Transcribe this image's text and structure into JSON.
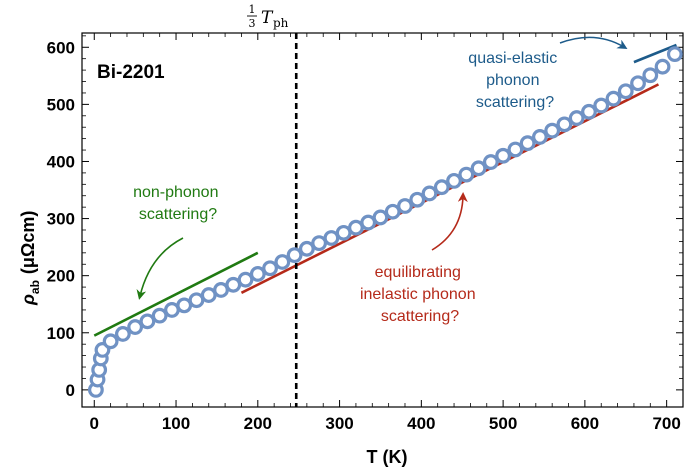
{
  "colors": {
    "marker_edge": "#7092c4",
    "green": "#207a12",
    "red": "#b52a1a",
    "blue": "#1d5b8a"
  },
  "chart_data": {
    "type": "scatter",
    "title": "",
    "xlabel": "T  (K)",
    "ylabel_main": "ρ",
    "ylabel_sub": "ab",
    "ylabel_unit": "(μΩcm)",
    "xlim": [
      -15,
      720
    ],
    "ylim": [
      -30,
      625
    ],
    "xticks": [
      0,
      100,
      200,
      300,
      400,
      500,
      600,
      700
    ],
    "yticks": [
      0,
      100,
      200,
      300,
      400,
      500,
      600
    ],
    "sample_label": "Bi-2201",
    "vline": {
      "x": 247,
      "label_frac_num": "1",
      "label_frac_den": "3",
      "label_T": "T",
      "label_sub": "ph"
    },
    "points": {
      "x": [
        2,
        4,
        6,
        8,
        10,
        20,
        35,
        50,
        65,
        80,
        95,
        110,
        125,
        140,
        155,
        170,
        185,
        200,
        215,
        230,
        245,
        260,
        275,
        290,
        305,
        320,
        335,
        350,
        365,
        380,
        395,
        410,
        425,
        440,
        455,
        470,
        485,
        500,
        515,
        530,
        545,
        560,
        575,
        590,
        605,
        620,
        635,
        650,
        665,
        680,
        695,
        710
      ],
      "y": [
        0,
        18,
        35,
        55,
        70,
        85,
        98,
        110,
        120,
        130,
        140,
        148,
        157,
        166,
        175,
        184,
        193,
        203,
        213,
        224,
        236,
        247,
        257,
        266,
        275,
        284,
        293,
        302,
        312,
        322,
        333,
        344,
        355,
        366,
        377,
        388,
        399,
        410,
        421,
        432,
        443,
        454,
        465,
        476,
        487,
        498,
        510,
        523,
        537,
        551,
        566,
        588
      ]
    },
    "fit_lines": [
      {
        "name": "non-phonon",
        "x": [
          0,
          200
        ],
        "y": [
          95,
          240
        ]
      },
      {
        "name": "inelastic",
        "x": [
          180,
          690
        ],
        "y": [
          170,
          535
        ]
      },
      {
        "name": "quasi-elastic",
        "x": [
          660,
          712
        ],
        "y": [
          574,
          604
        ]
      }
    ],
    "annotations": [
      {
        "lines": [
          "non-phonon",
          "scattering?"
        ],
        "color": "green"
      },
      {
        "lines": [
          "equilibrating",
          "inelastic phonon",
          "scattering?"
        ],
        "color": "red"
      },
      {
        "lines": [
          "quasi-elastic",
          "phonon",
          "scattering?"
        ],
        "color": "blue"
      }
    ]
  }
}
